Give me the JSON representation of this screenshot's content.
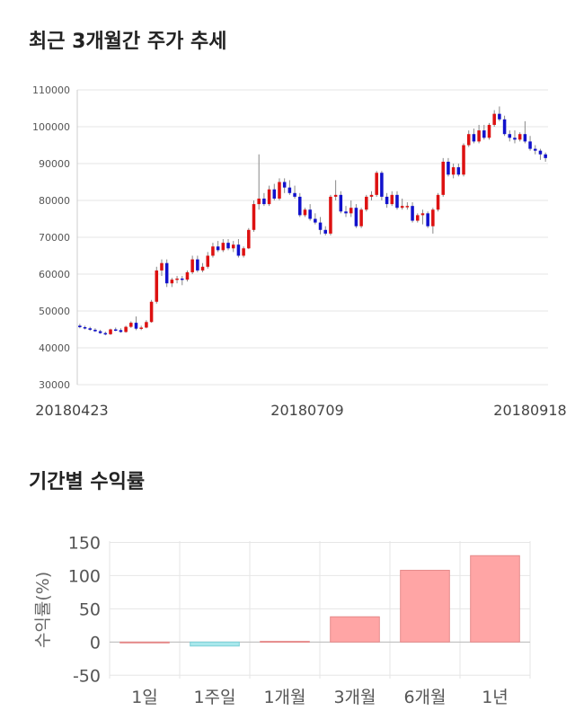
{
  "sections": {
    "price_title": "최근 3개월간 주가 추세",
    "return_title": "기간별 수익률"
  },
  "colors": {
    "up": "#dd1111",
    "down": "#1111cc",
    "positive_bar": "#ffa5a5",
    "negative_bar": "#a8e8ec",
    "grid": "#e6e6e6"
  },
  "chart_data": [
    {
      "type": "candlestick",
      "title": "최근 3개월간 주가 추세",
      "yticks": [
        110000,
        100000,
        90000,
        80000,
        70000,
        60000,
        50000,
        40000,
        30000
      ],
      "ylim": [
        30000,
        110000
      ],
      "x_tick_labels": [
        "20180423",
        "20180709",
        "20180918"
      ],
      "grid": "horizontal",
      "candles": [
        [
          46000,
          46500,
          45300,
          45600
        ],
        [
          45600,
          46000,
          45000,
          45300
        ],
        [
          45300,
          45700,
          44600,
          44900
        ],
        [
          44900,
          45300,
          44300,
          44500
        ],
        [
          44500,
          44900,
          43800,
          44000
        ],
        [
          44000,
          44400,
          43400,
          43700
        ],
        [
          43700,
          45200,
          43500,
          45000
        ],
        [
          45000,
          45500,
          44500,
          44800
        ],
        [
          44800,
          45300,
          44100,
          44300
        ],
        [
          44300,
          46000,
          44100,
          45700
        ],
        [
          45700,
          47200,
          45400,
          46800
        ],
        [
          46800,
          48500,
          44800,
          45200
        ],
        [
          45200,
          46000,
          44800,
          45500
        ],
        [
          45500,
          47500,
          45300,
          47000
        ],
        [
          47000,
          53000,
          46800,
          52500
        ],
        [
          52500,
          62000,
          52000,
          61000
        ],
        [
          61000,
          64000,
          59500,
          63000
        ],
        [
          63000,
          64000,
          56500,
          57500
        ],
        [
          57500,
          59000,
          56500,
          58500
        ],
        [
          58500,
          59500,
          57500,
          58800
        ],
        [
          58800,
          59500,
          57000,
          58500
        ],
        [
          58500,
          61000,
          58000,
          60500
        ],
        [
          60500,
          65000,
          60000,
          64000
        ],
        [
          64000,
          65000,
          60500,
          61000
        ],
        [
          61000,
          63000,
          60500,
          62000
        ],
        [
          62000,
          66000,
          61500,
          65000
        ],
        [
          65000,
          68500,
          64500,
          67500
        ],
        [
          67500,
          69000,
          66000,
          66500
        ],
        [
          66500,
          69500,
          66000,
          68500
        ],
        [
          68500,
          69500,
          66500,
          67000
        ],
        [
          67000,
          69000,
          66000,
          68000
        ],
        [
          68000,
          69500,
          64500,
          65000
        ],
        [
          65000,
          67500,
          64500,
          67000
        ],
        [
          67000,
          72500,
          66800,
          72000
        ],
        [
          72000,
          80000,
          71500,
          79000
        ],
        [
          79000,
          92500,
          77500,
          80500
        ],
        [
          80500,
          82000,
          78500,
          79000
        ],
        [
          79000,
          84000,
          78500,
          83000
        ],
        [
          83000,
          84500,
          80000,
          80500
        ],
        [
          80500,
          86000,
          80000,
          85000
        ],
        [
          85000,
          86000,
          82000,
          83500
        ],
        [
          83500,
          85500,
          81500,
          82000
        ],
        [
          82000,
          84000,
          80500,
          81000
        ],
        [
          81000,
          82000,
          75500,
          76000
        ],
        [
          76000,
          78000,
          75500,
          77500
        ],
        [
          77500,
          79000,
          74500,
          75000
        ],
        [
          75000,
          76500,
          73500,
          74000
        ],
        [
          74000,
          75500,
          70800,
          72000
        ],
        [
          72000,
          73000,
          70500,
          71000
        ],
        [
          71000,
          81500,
          70500,
          81000
        ],
        [
          81000,
          85500,
          80000,
          81500
        ],
        [
          81500,
          82500,
          76500,
          77000
        ],
        [
          77000,
          78500,
          75500,
          76500
        ],
        [
          76500,
          80000,
          75500,
          78000
        ],
        [
          78000,
          79000,
          72500,
          73000
        ],
        [
          73000,
          78000,
          72500,
          77500
        ],
        [
          77500,
          81500,
          77000,
          81000
        ],
        [
          81000,
          82500,
          80000,
          81500
        ],
        [
          81500,
          88000,
          81000,
          87500
        ],
        [
          87500,
          88000,
          80000,
          81000
        ],
        [
          81000,
          82000,
          78000,
          79000
        ],
        [
          79000,
          82500,
          78500,
          81500
        ],
        [
          81500,
          82500,
          77500,
          78000
        ],
        [
          78000,
          80500,
          77500,
          78500
        ],
        [
          78500,
          79500,
          77500,
          78500
        ],
        [
          78500,
          79500,
          74000,
          74500
        ],
        [
          74500,
          76500,
          74000,
          76000
        ],
        [
          76000,
          77500,
          73500,
          76500
        ],
        [
          76500,
          77000,
          72500,
          73000
        ],
        [
          73000,
          78000,
          71000,
          77500
        ],
        [
          77500,
          82000,
          77000,
          81500
        ],
        [
          81500,
          91500,
          81000,
          90500
        ],
        [
          90500,
          91500,
          86500,
          87000
        ],
        [
          87000,
          90000,
          86000,
          89000
        ],
        [
          89000,
          90000,
          86500,
          87000
        ],
        [
          87000,
          95500,
          86500,
          95000
        ],
        [
          95000,
          99000,
          94500,
          98000
        ],
        [
          98000,
          99500,
          95500,
          96000
        ],
        [
          96000,
          100500,
          95500,
          99000
        ],
        [
          99000,
          100500,
          96500,
          97000
        ],
        [
          97000,
          101000,
          96500,
          100500
        ],
        [
          100500,
          104500,
          100000,
          103500
        ],
        [
          103500,
          105500,
          101500,
          102000
        ],
        [
          102000,
          103000,
          97500,
          98000
        ],
        [
          98000,
          99000,
          96000,
          97000
        ],
        [
          97000,
          99000,
          95500,
          96500
        ],
        [
          96500,
          98500,
          96000,
          98000
        ],
        [
          98000,
          101500,
          95500,
          96000
        ],
        [
          96000,
          97500,
          93500,
          94000
        ],
        [
          94000,
          95000,
          92500,
          93500
        ],
        [
          93500,
          94000,
          91000,
          92500
        ],
        [
          92500,
          93000,
          90500,
          91500
        ]
      ]
    },
    {
      "type": "bar",
      "title": "기간별 수익률",
      "ylabel": "수익률(%)",
      "categories": [
        "1일",
        "1주일",
        "1개월",
        "3개월",
        "6개월",
        "1년"
      ],
      "values": [
        0,
        -6,
        1,
        38,
        108,
        130
      ],
      "yticks": [
        150,
        100,
        50,
        0,
        -50
      ],
      "ylim": [
        -55,
        152
      ]
    }
  ]
}
